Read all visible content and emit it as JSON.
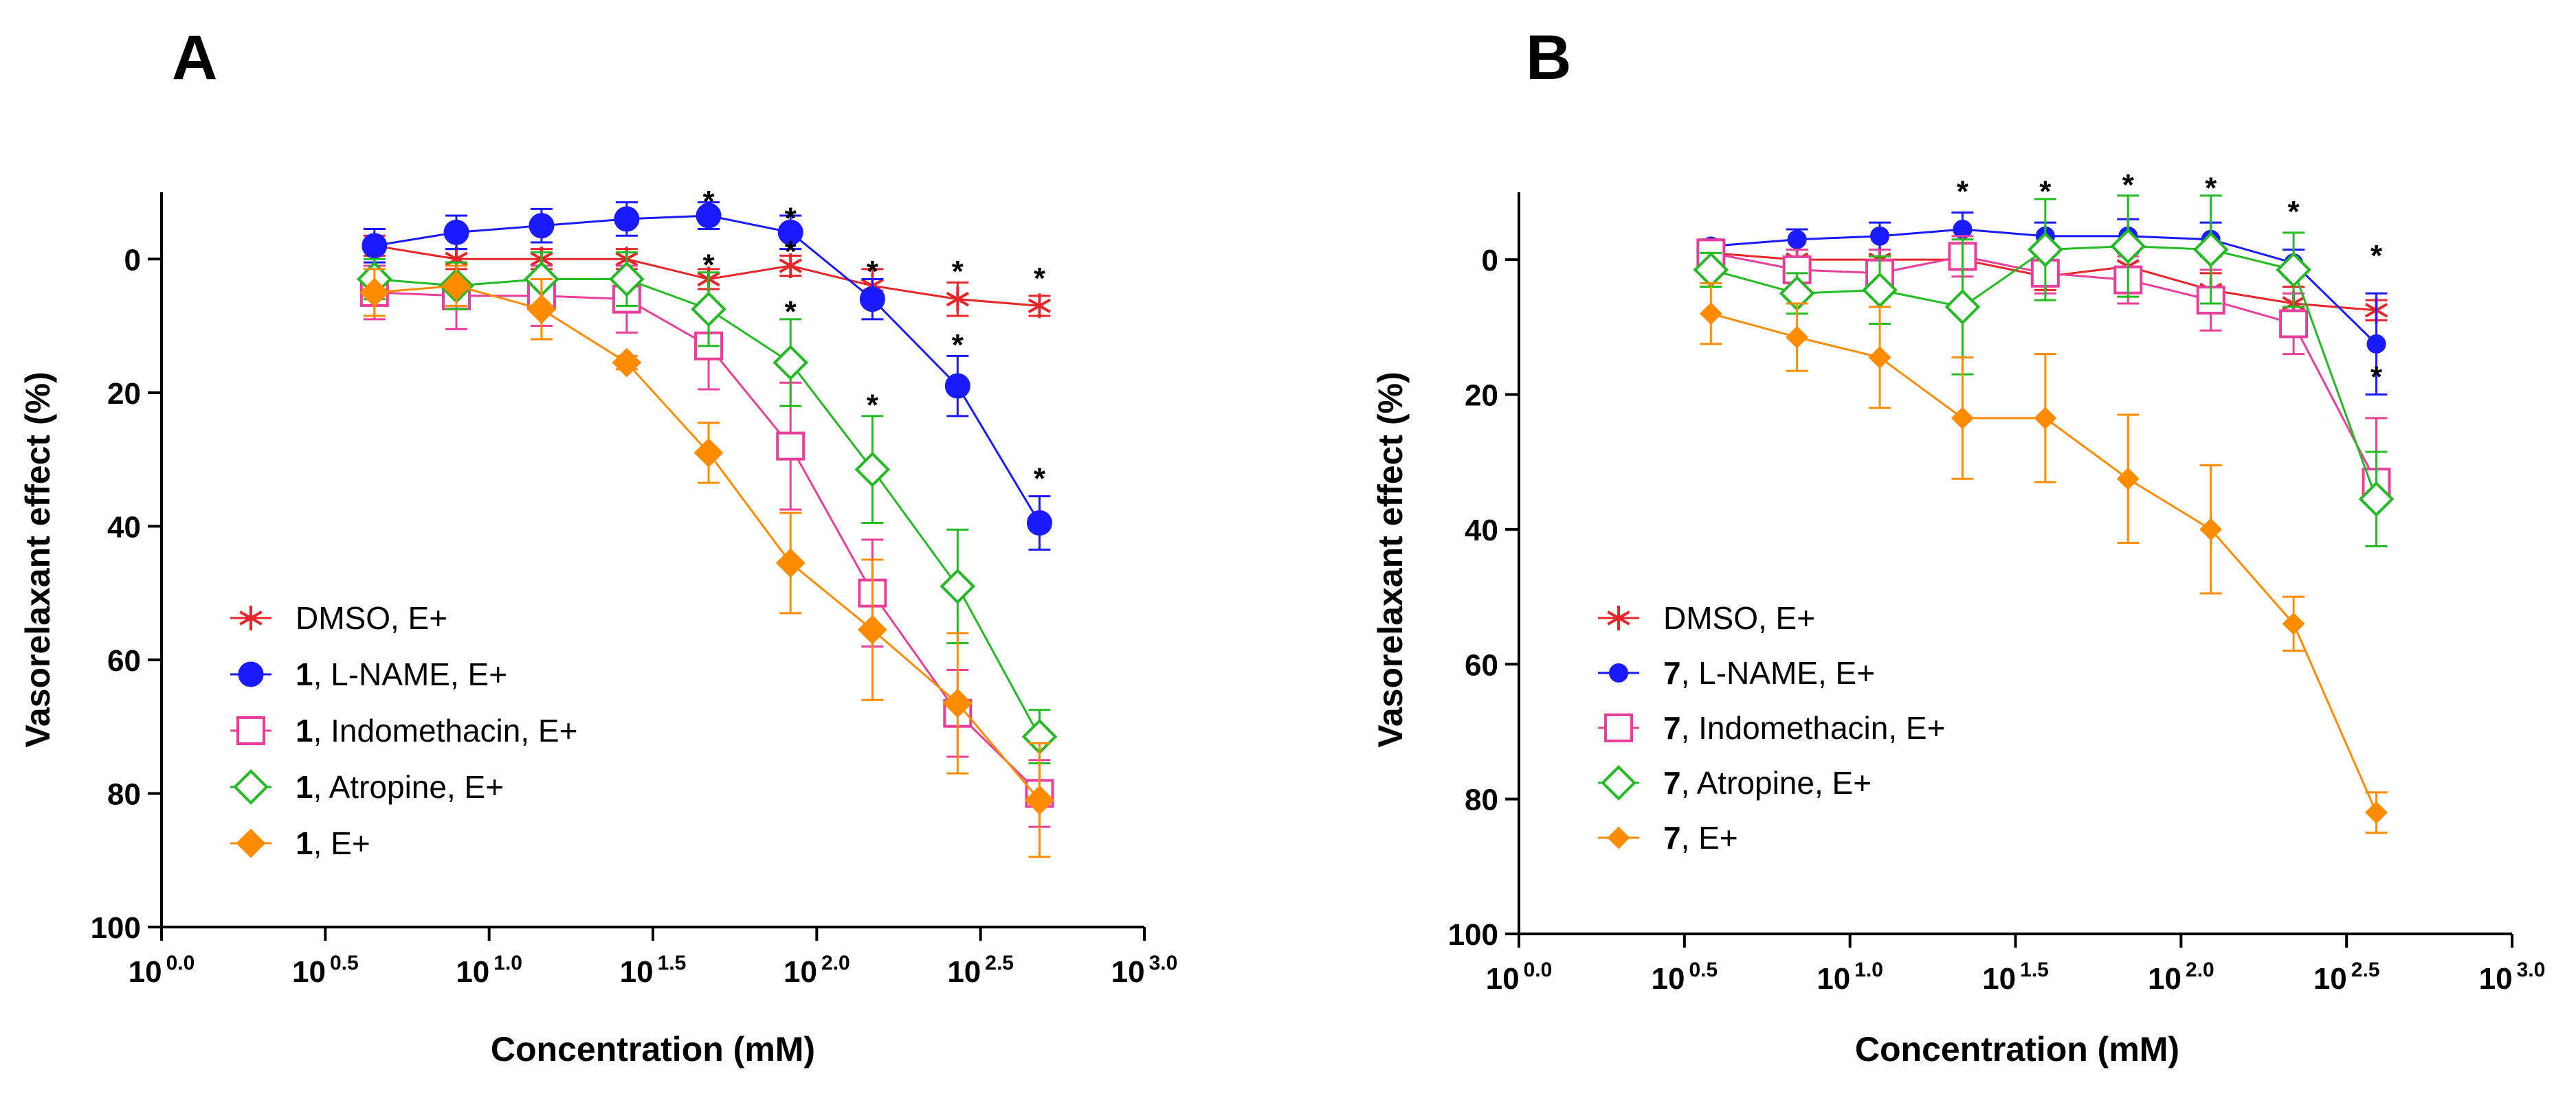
{
  "chart_data": [
    {
      "panel": "A",
      "type": "line",
      "xlabel": "Concentration (mM)",
      "ylabel": "Vasorelaxant effect (%)",
      "x_scale": "log10",
      "xlim": [
        0.0,
        3.0
      ],
      "ylim": [
        -10,
        100
      ],
      "y_inverted": true,
      "x_ticks": [
        {
          "value": 0.0,
          "base": "10",
          "exp": "0.0"
        },
        {
          "value": 0.5,
          "base": "10",
          "exp": "0.5"
        },
        {
          "value": 1.0,
          "base": "10",
          "exp": "1.0"
        },
        {
          "value": 1.5,
          "base": "10",
          "exp": "1.5"
        },
        {
          "value": 2.0,
          "base": "10",
          "exp": "2.0"
        },
        {
          "value": 2.5,
          "base": "10",
          "exp": "2.5"
        },
        {
          "value": 3.0,
          "base": "10",
          "exp": "3.0"
        }
      ],
      "y_ticks": [
        {
          "value": 0,
          "label": "0"
        },
        {
          "value": 20,
          "label": "20"
        },
        {
          "value": 40,
          "label": "40"
        },
        {
          "value": 60,
          "label": "60"
        },
        {
          "value": 80,
          "label": "80"
        },
        {
          "value": 100,
          "label": "100"
        }
      ],
      "x": [
        0.65,
        0.9,
        1.16,
        1.42,
        1.67,
        1.92,
        2.17,
        2.43,
        2.68
      ],
      "legend_position": "bottom-left",
      "series": [
        {
          "name": "DMSO, E+",
          "num": "",
          "rest": "DMSO, E+",
          "color": "#e8262a",
          "marker": "asterisk",
          "values": [
            -2,
            0,
            0,
            0,
            3,
            1,
            4,
            6,
            7
          ],
          "errors": [
            1.5,
            1.5,
            1.5,
            1.5,
            1.5,
            1.5,
            2.5,
            2.5,
            1.5
          ]
        },
        {
          "name": "1, L-NAME, E+",
          "num": "1",
          "rest": ", L-NAME, E+",
          "color": "#1a1aff",
          "marker": "circle",
          "values": [
            -2,
            -4,
            -5,
            -6,
            -6.5,
            -4,
            6,
            19,
            39.5
          ],
          "errors": [
            2.5,
            2.5,
            2.5,
            2.5,
            2,
            2.5,
            3,
            4.5,
            4
          ]
        },
        {
          "name": "1, Indomethacin, E+",
          "num": "1",
          "rest": ", Indomethacin, E+",
          "color": "#e8409a",
          "marker": "square",
          "values": [
            5,
            5.5,
            5.5,
            6,
            13,
            28,
            50,
            68,
            80
          ],
          "errors": [
            4,
            5,
            4.5,
            5,
            6.5,
            9.5,
            8,
            6.5,
            5
          ]
        },
        {
          "name": "1, Atropine, E+",
          "num": "1",
          "rest": ", Atropine, E+",
          "color": "#22bb22",
          "marker": "diamond-open",
          "values": [
            3,
            4,
            3,
            3,
            7.5,
            15.5,
            31.5,
            49,
            71.5
          ],
          "errors": [
            3,
            3.5,
            4,
            4,
            5.5,
            6.5,
            8,
            8.5,
            4
          ]
        },
        {
          "name": "1, E+",
          "num": "1",
          "rest": ", E+",
          "color": "#ff8c00",
          "marker": "diamond",
          "values": [
            5,
            4,
            7.5,
            15.5,
            29,
            45.5,
            55.5,
            66.5,
            81
          ],
          "errors": [
            3.5,
            3,
            4.5,
            1,
            4.5,
            7.5,
            10.5,
            10.5,
            8.5
          ]
        }
      ],
      "significance": [
        {
          "x": 1.67,
          "y": -6.5,
          "label": "*"
        },
        {
          "x": 1.92,
          "y": -4,
          "label": "*"
        },
        {
          "x": 2.17,
          "y": 4,
          "label": "*"
        },
        {
          "x": 2.43,
          "y": 15,
          "label": "*"
        },
        {
          "x": 2.68,
          "y": 35,
          "label": "*"
        },
        {
          "x": 1.67,
          "y": 3,
          "label": "*"
        },
        {
          "x": 1.92,
          "y": 1,
          "label": "*"
        },
        {
          "x": 2.43,
          "y": 4,
          "label": "*"
        },
        {
          "x": 2.68,
          "y": 5,
          "label": "*"
        },
        {
          "x": 1.92,
          "y": 10,
          "label": "*"
        },
        {
          "x": 2.17,
          "y": 24,
          "label": "*"
        }
      ]
    },
    {
      "panel": "B",
      "type": "line",
      "xlabel": "Concentration (mM)",
      "ylabel": "Vasorelaxant effect (%)",
      "x_scale": "log10",
      "xlim": [
        0.0,
        3.0
      ],
      "ylim": [
        -10,
        100
      ],
      "y_inverted": true,
      "x_ticks": [
        {
          "value": 0.0,
          "base": "10",
          "exp": "0.0"
        },
        {
          "value": 0.5,
          "base": "10",
          "exp": "0.5"
        },
        {
          "value": 1.0,
          "base": "10",
          "exp": "1.0"
        },
        {
          "value": 1.5,
          "base": "10",
          "exp": "1.5"
        },
        {
          "value": 2.0,
          "base": "10",
          "exp": "2.0"
        },
        {
          "value": 2.5,
          "base": "10",
          "exp": "2.5"
        },
        {
          "value": 3.0,
          "base": "10",
          "exp": "3.0"
        }
      ],
      "y_ticks": [
        {
          "value": 0,
          "label": "0"
        },
        {
          "value": 20,
          "label": "20"
        },
        {
          "value": 40,
          "label": "40"
        },
        {
          "value": 60,
          "label": "60"
        },
        {
          "value": 80,
          "label": "80"
        },
        {
          "value": 100,
          "label": "100"
        }
      ],
      "x": [
        0.58,
        0.84,
        1.09,
        1.34,
        1.59,
        1.84,
        2.09,
        2.34,
        2.59
      ],
      "legend_position": "bottom-left",
      "series": [
        {
          "name": "DMSO, E+",
          "num": "",
          "rest": "DMSO, E+",
          "color": "#e8262a",
          "marker": "asterisk",
          "values": [
            -1,
            0,
            0,
            0,
            2.5,
            1,
            4.5,
            6.5,
            7.5
          ],
          "errors": [
            1.5,
            1.5,
            1.5,
            1.5,
            2,
            2,
            2.5,
            2.5,
            1.5
          ]
        },
        {
          "name": "7, L-NAME, E+",
          "num": "7",
          "rest": ", L-NAME, E+",
          "color": "#1a1aff",
          "marker": "dot",
          "values": [
            -2,
            -3,
            -3.5,
            -4.5,
            -3.5,
            -3.5,
            -3,
            0.5,
            12.5
          ],
          "errors": [
            1,
            1.5,
            2,
            2.5,
            2,
            2.5,
            2.5,
            2,
            7.5
          ]
        },
        {
          "name": "7, Indomethacin, E+",
          "num": "7",
          "rest": ", Indomethacin, E+",
          "color": "#e8409a",
          "marker": "square",
          "values": [
            -1,
            1.5,
            2,
            -0.5,
            2,
            3,
            6,
            9.5,
            33
          ],
          "errors": [
            2,
            3,
            3.5,
            3,
            3,
            3.5,
            4.5,
            4.5,
            9.5
          ]
        },
        {
          "name": "7, Atropine, E+",
          "num": "7",
          "rest": ", Atropine, E+",
          "color": "#22bb22",
          "marker": "diamond-open",
          "values": [
            1.5,
            5,
            4.5,
            7,
            -1.5,
            -2,
            -1.5,
            1.5,
            35.5
          ],
          "errors": [
            2.5,
            3,
            5,
            10,
            7.5,
            7.5,
            8,
            5.5,
            7
          ]
        },
        {
          "name": "7, E+",
          "num": "7",
          "rest": ", E+",
          "color": "#ff8c00",
          "marker": "diamond-small",
          "values": [
            8,
            11.5,
            14.5,
            23.5,
            23.5,
            32.5,
            40,
            54,
            82
          ],
          "errors": [
            4.5,
            5,
            7.5,
            9,
            9.5,
            9.5,
            9.5,
            4,
            3
          ]
        }
      ],
      "significance": [
        {
          "x": 1.34,
          "y": -8,
          "label": "*"
        },
        {
          "x": 1.59,
          "y": -8,
          "label": "*"
        },
        {
          "x": 1.84,
          "y": -9,
          "label": "*"
        },
        {
          "x": 2.09,
          "y": -8.5,
          "label": "*"
        },
        {
          "x": 2.34,
          "y": -5,
          "label": "*"
        },
        {
          "x": 2.59,
          "y": 1.5,
          "label": "*"
        },
        {
          "x": 2.59,
          "y": 19.5,
          "label": "*"
        }
      ]
    }
  ]
}
